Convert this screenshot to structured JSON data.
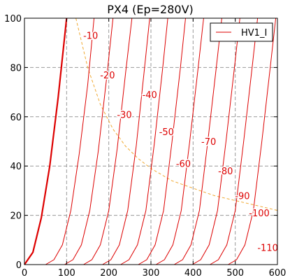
{
  "chart_data": {
    "type": "line",
    "title": "PX4 (Ep=280V)",
    "xlabel": "",
    "ylabel": "",
    "xlim": [
      0,
      600
    ],
    "ylim": [
      0,
      100
    ],
    "x_ticks": [
      "0",
      "100",
      "200",
      "300",
      "400",
      "500",
      "600"
    ],
    "y_ticks": [
      "0",
      "20",
      "40",
      "60",
      "80",
      "100"
    ],
    "grid": true,
    "legend": {
      "placement": "top-right",
      "entries": [
        "HV1_I"
      ]
    },
    "colors": {
      "curves": "#dd0000",
      "load_line": "#f0a830"
    },
    "series": [
      {
        "label": "",
        "bold": true,
        "points": [
          [
            0,
            0
          ],
          [
            20,
            5
          ],
          [
            40,
            19
          ],
          [
            60,
            40
          ],
          [
            80,
            68
          ],
          [
            95,
            92
          ],
          [
            100,
            100
          ]
        ]
      },
      {
        "label": "-10",
        "points": [
          [
            50,
            0
          ],
          [
            70,
            2
          ],
          [
            90,
            8
          ],
          [
            110,
            22
          ],
          [
            130,
            45
          ],
          [
            150,
            73
          ],
          [
            165,
            100
          ]
        ]
      },
      {
        "label": "-20",
        "points": [
          [
            95,
            0
          ],
          [
            115,
            2
          ],
          [
            135,
            8
          ],
          [
            155,
            22
          ],
          [
            175,
            46
          ],
          [
            195,
            76
          ],
          [
            210,
            100
          ]
        ]
      },
      {
        "label": "-30",
        "points": [
          [
            140,
            0
          ],
          [
            160,
            2
          ],
          [
            180,
            8
          ],
          [
            200,
            22
          ],
          [
            220,
            47
          ],
          [
            240,
            78
          ],
          [
            255,
            100
          ]
        ]
      },
      {
        "label": "-40",
        "points": [
          [
            185,
            0
          ],
          [
            205,
            2
          ],
          [
            225,
            8
          ],
          [
            245,
            22
          ],
          [
            265,
            48
          ],
          [
            285,
            80
          ],
          [
            297,
            100
          ]
        ]
      },
      {
        "label": "-50",
        "points": [
          [
            228,
            0
          ],
          [
            248,
            2
          ],
          [
            268,
            8
          ],
          [
            288,
            22
          ],
          [
            308,
            49
          ],
          [
            328,
            80
          ],
          [
            340,
            100
          ]
        ]
      },
      {
        "label": "-60",
        "points": [
          [
            270,
            0
          ],
          [
            290,
            2
          ],
          [
            310,
            8
          ],
          [
            330,
            22
          ],
          [
            350,
            50
          ],
          [
            370,
            80
          ],
          [
            382,
            100
          ]
        ]
      },
      {
        "label": "-70",
        "points": [
          [
            312,
            0
          ],
          [
            332,
            2
          ],
          [
            352,
            8
          ],
          [
            372,
            22
          ],
          [
            392,
            50
          ],
          [
            412,
            80
          ],
          [
            425,
            100
          ]
        ]
      },
      {
        "label": "-80",
        "points": [
          [
            355,
            0
          ],
          [
            375,
            2
          ],
          [
            395,
            8
          ],
          [
            415,
            22
          ],
          [
            435,
            50
          ],
          [
            455,
            80
          ],
          [
            468,
            100
          ]
        ]
      },
      {
        "label": "-90",
        "points": [
          [
            398,
            0
          ],
          [
            418,
            2
          ],
          [
            438,
            8
          ],
          [
            458,
            22
          ],
          [
            478,
            50
          ],
          [
            498,
            80
          ],
          [
            511,
            100
          ]
        ]
      },
      {
        "label": "-100",
        "points": [
          [
            440,
            0
          ],
          [
            460,
            2
          ],
          [
            480,
            8
          ],
          [
            500,
            22
          ],
          [
            520,
            50
          ],
          [
            540,
            80
          ],
          [
            553,
            100
          ]
        ]
      },
      {
        "label": "-110",
        "points": [
          [
            483,
            0
          ],
          [
            503,
            2
          ],
          [
            523,
            8
          ],
          [
            543,
            22
          ],
          [
            563,
            50
          ],
          [
            583,
            80
          ],
          [
            596,
            100
          ]
        ]
      }
    ],
    "load_line": {
      "points": [
        [
          122,
          100
        ],
        [
          150,
          80
        ],
        [
          180,
          65
        ],
        [
          210,
          55
        ],
        [
          240,
          48
        ],
        [
          270,
          43
        ],
        [
          300,
          39
        ],
        [
          350,
          34
        ],
        [
          400,
          31
        ],
        [
          450,
          28
        ],
        [
          500,
          26
        ],
        [
          550,
          24
        ],
        [
          600,
          22
        ]
      ]
    },
    "curve_labels": [
      {
        "text": "-10",
        "x": 157,
        "y": 93
      },
      {
        "text": "-20",
        "x": 197,
        "y": 77
      },
      {
        "text": "-30",
        "x": 237,
        "y": 61
      },
      {
        "text": "-40",
        "x": 297,
        "y": 69
      },
      {
        "text": "-50",
        "x": 337,
        "y": 54
      },
      {
        "text": "-60",
        "x": 377,
        "y": 41
      },
      {
        "text": "-70",
        "x": 437,
        "y": 50
      },
      {
        "text": "-80",
        "x": 477,
        "y": 38
      },
      {
        "text": "-90",
        "x": 517,
        "y": 28
      },
      {
        "text": "-100",
        "x": 557,
        "y": 21
      },
      {
        "text": "-110",
        "x": 577,
        "y": 7
      }
    ]
  }
}
